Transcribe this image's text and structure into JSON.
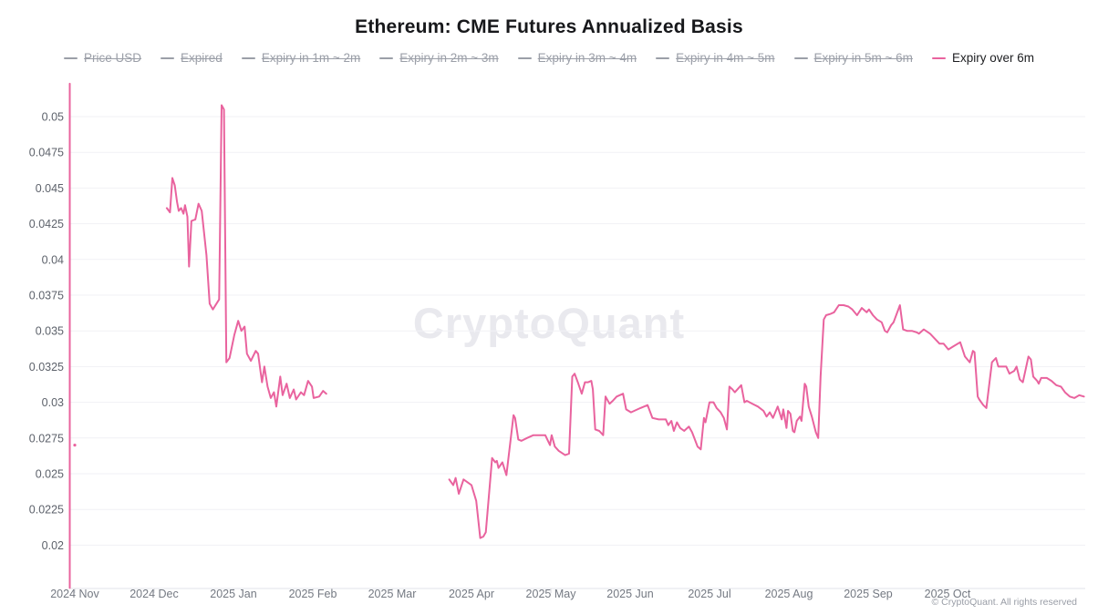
{
  "title": "Ethereum: CME Futures Annualized Basis",
  "watermark": "CryptoQuant",
  "copyright": "© CryptoQuant. All rights reserved",
  "colors": {
    "accent_pink": "#e9639e",
    "legend_disabled_gray": "#9b9fa8",
    "grid_line": "#f1f1f5",
    "axis_line": "#e2e3e8",
    "axis_text": "#747982",
    "y_axis_text": "#5d626b"
  },
  "legend": {
    "items": [
      {
        "label": "Price USD",
        "active": false
      },
      {
        "label": "Expired",
        "active": false
      },
      {
        "label": "Expiry in 1m ~ 2m",
        "active": false
      },
      {
        "label": "Expiry in 2m ~ 3m",
        "active": false
      },
      {
        "label": "Expiry in 3m ~ 4m",
        "active": false
      },
      {
        "label": "Expiry in 4m ~ 5m",
        "active": false
      },
      {
        "label": "Expiry in 5m ~ 6m",
        "active": false
      },
      {
        "label": "Expiry over 6m",
        "active": true
      }
    ]
  },
  "chart_data": {
    "type": "line",
    "title": "Ethereum: CME Futures Annualized Basis",
    "xlabel": "",
    "ylabel": "",
    "grid": true,
    "legend_position": "top",
    "x_axis": {
      "unit": "months since 2024-11-01 (decimal)",
      "labels": [
        "2024 Nov",
        "2024 Dec",
        "2025 Jan",
        "2025 Feb",
        "2025 Mar",
        "2025 Apr",
        "2025 May",
        "2025 Jun",
        "2025 Jul",
        "2025 Aug",
        "2025 Sep",
        "2025 Oct"
      ]
    },
    "y_axis": {
      "tick_values": [
        0.05,
        0.0475,
        0.045,
        0.0425,
        0.04,
        0.0375,
        0.035,
        0.0325,
        0.03,
        0.0275,
        0.025,
        0.0225,
        0.02
      ],
      "tick_labels": [
        "0.05",
        "0.0475",
        "0.045",
        "0.0425",
        "0.04",
        "0.0375",
        "0.035",
        "0.0325",
        "0.03",
        "0.0275",
        "0.025",
        "0.0225",
        "0.02"
      ],
      "range": [
        0.0165,
        0.0525
      ]
    },
    "series": [
      {
        "name": "Expiry over 6m",
        "color": "#e9639e",
        "points": [
          [
            0.0,
            0.027
          ]
        ],
        "segments": [
          [
            [
              -0.063,
              0.0523
            ],
            [
              -0.063,
              0.017
            ]
          ],
          [
            [
              1.16,
              0.0436
            ],
            [
              1.2,
              0.0433
            ],
            [
              1.23,
              0.0457
            ],
            [
              1.26,
              0.0452
            ],
            [
              1.29,
              0.044
            ],
            [
              1.31,
              0.0434
            ],
            [
              1.34,
              0.0436
            ],
            [
              1.37,
              0.0432
            ],
            [
              1.39,
              0.0438
            ],
            [
              1.42,
              0.043
            ],
            [
              1.44,
              0.0395
            ],
            [
              1.47,
              0.0427
            ],
            [
              1.52,
              0.0428
            ],
            [
              1.56,
              0.0439
            ],
            [
              1.6,
              0.0434
            ],
            [
              1.66,
              0.0403
            ],
            [
              1.7,
              0.0369
            ],
            [
              1.74,
              0.0365
            ],
            [
              1.82,
              0.0372
            ],
            [
              1.85,
              0.0508
            ],
            [
              1.88,
              0.0505
            ],
            [
              1.91,
              0.0328
            ],
            [
              1.95,
              0.0331
            ],
            [
              2.01,
              0.0347
            ],
            [
              2.06,
              0.0357
            ],
            [
              2.1,
              0.035
            ],
            [
              2.14,
              0.0353
            ],
            [
              2.17,
              0.0334
            ],
            [
              2.22,
              0.0329
            ],
            [
              2.28,
              0.0336
            ],
            [
              2.31,
              0.0334
            ],
            [
              2.36,
              0.0314
            ],
            [
              2.39,
              0.0325
            ],
            [
              2.43,
              0.0311
            ],
            [
              2.47,
              0.0303
            ],
            [
              2.51,
              0.0307
            ],
            [
              2.54,
              0.0297
            ],
            [
              2.59,
              0.0318
            ],
            [
              2.62,
              0.0305
            ],
            [
              2.67,
              0.0313
            ],
            [
              2.71,
              0.0303
            ],
            [
              2.76,
              0.0309
            ],
            [
              2.79,
              0.0302
            ],
            [
              2.85,
              0.0307
            ],
            [
              2.89,
              0.0305
            ],
            [
              2.94,
              0.0315
            ],
            [
              2.99,
              0.0311
            ],
            [
              3.01,
              0.0303
            ],
            [
              3.08,
              0.0304
            ],
            [
              3.13,
              0.0308
            ],
            [
              3.17,
              0.0306
            ]
          ],
          [
            [
              4.72,
              0.0246
            ],
            [
              4.77,
              0.0242
            ],
            [
              4.8,
              0.0247
            ],
            [
              4.84,
              0.0236
            ],
            [
              4.9,
              0.0246
            ],
            [
              4.95,
              0.0244
            ],
            [
              5.0,
              0.0242
            ],
            [
              5.06,
              0.0231
            ],
            [
              5.11,
              0.0205
            ],
            [
              5.15,
              0.0206
            ],
            [
              5.18,
              0.0209
            ],
            [
              5.26,
              0.0261
            ],
            [
              5.3,
              0.0258
            ],
            [
              5.32,
              0.0259
            ],
            [
              5.34,
              0.0254
            ],
            [
              5.39,
              0.0258
            ],
            [
              5.44,
              0.0249
            ],
            [
              5.53,
              0.0291
            ],
            [
              5.55,
              0.0289
            ],
            [
              5.59,
              0.0274
            ],
            [
              5.63,
              0.0273
            ],
            [
              5.7,
              0.0275
            ],
            [
              5.78,
              0.0277
            ],
            [
              5.86,
              0.0277
            ],
            [
              5.93,
              0.0277
            ],
            [
              5.99,
              0.027
            ],
            [
              6.01,
              0.0277
            ],
            [
              6.05,
              0.0269
            ],
            [
              6.1,
              0.0266
            ],
            [
              6.18,
              0.0263
            ],
            [
              6.23,
              0.0264
            ],
            [
              6.27,
              0.0318
            ],
            [
              6.3,
              0.032
            ],
            [
              6.34,
              0.0314
            ],
            [
              6.39,
              0.0306
            ],
            [
              6.43,
              0.0314
            ],
            [
              6.47,
              0.0314
            ],
            [
              6.51,
              0.0315
            ],
            [
              6.53,
              0.0309
            ],
            [
              6.56,
              0.0281
            ],
            [
              6.61,
              0.028
            ],
            [
              6.66,
              0.0277
            ],
            [
              6.69,
              0.0304
            ],
            [
              6.74,
              0.0299
            ],
            [
              6.78,
              0.0301
            ],
            [
              6.83,
              0.0304
            ],
            [
              6.91,
              0.0306
            ],
            [
              6.95,
              0.0295
            ],
            [
              7.01,
              0.0293
            ],
            [
              7.13,
              0.0296
            ],
            [
              7.22,
              0.0298
            ],
            [
              7.28,
              0.0289
            ],
            [
              7.36,
              0.0288
            ],
            [
              7.45,
              0.0288
            ],
            [
              7.48,
              0.0284
            ],
            [
              7.52,
              0.0287
            ],
            [
              7.55,
              0.028
            ],
            [
              7.59,
              0.0286
            ],
            [
              7.63,
              0.0282
            ],
            [
              7.68,
              0.028
            ],
            [
              7.74,
              0.0283
            ],
            [
              7.78,
              0.0279
            ],
            [
              7.85,
              0.0269
            ],
            [
              7.89,
              0.0267
            ],
            [
              7.93,
              0.0289
            ],
            [
              7.95,
              0.0286
            ],
            [
              8.0,
              0.03
            ],
            [
              8.05,
              0.03
            ],
            [
              8.09,
              0.0296
            ],
            [
              8.14,
              0.0293
            ],
            [
              8.18,
              0.0289
            ],
            [
              8.22,
              0.0281
            ],
            [
              8.25,
              0.0311
            ],
            [
              8.29,
              0.0309
            ],
            [
              8.32,
              0.0307
            ],
            [
              8.4,
              0.0312
            ],
            [
              8.44,
              0.03
            ],
            [
              8.47,
              0.0301
            ],
            [
              8.54,
              0.0299
            ],
            [
              8.61,
              0.0297
            ],
            [
              8.68,
              0.0294
            ],
            [
              8.72,
              0.029
            ],
            [
              8.76,
              0.0293
            ],
            [
              8.8,
              0.0289
            ],
            [
              8.86,
              0.0297
            ],
            [
              8.91,
              0.0288
            ],
            [
              8.93,
              0.0295
            ],
            [
              8.97,
              0.0282
            ],
            [
              8.99,
              0.0294
            ],
            [
              9.02,
              0.0292
            ],
            [
              9.05,
              0.028
            ],
            [
              9.07,
              0.0279
            ],
            [
              9.1,
              0.0287
            ],
            [
              9.14,
              0.029
            ],
            [
              9.16,
              0.0287
            ],
            [
              9.2,
              0.0313
            ],
            [
              9.22,
              0.0311
            ],
            [
              9.25,
              0.0297
            ],
            [
              9.29,
              0.029
            ],
            [
              9.34,
              0.0279
            ],
            [
              9.37,
              0.0275
            ],
            [
              9.4,
              0.0318
            ],
            [
              9.44,
              0.0358
            ],
            [
              9.47,
              0.0361
            ],
            [
              9.53,
              0.0362
            ],
            [
              9.57,
              0.0363
            ],
            [
              9.63,
              0.0368
            ],
            [
              9.69,
              0.0368
            ],
            [
              9.75,
              0.0367
            ],
            [
              9.8,
              0.0365
            ],
            [
              9.86,
              0.0361
            ],
            [
              9.92,
              0.0366
            ],
            [
              9.98,
              0.0363
            ],
            [
              10.01,
              0.0365
            ],
            [
              10.06,
              0.0361
            ],
            [
              10.11,
              0.0358
            ],
            [
              10.17,
              0.0356
            ],
            [
              10.21,
              0.035
            ],
            [
              10.24,
              0.0349
            ],
            [
              10.29,
              0.0354
            ],
            [
              10.32,
              0.0356
            ],
            [
              10.4,
              0.0368
            ],
            [
              10.44,
              0.0351
            ],
            [
              10.49,
              0.035
            ],
            [
              10.55,
              0.035
            ],
            [
              10.61,
              0.0349
            ],
            [
              10.64,
              0.0348
            ],
            [
              10.7,
              0.0351
            ],
            [
              10.78,
              0.0348
            ],
            [
              10.9,
              0.0341
            ],
            [
              10.95,
              0.0341
            ],
            [
              11.01,
              0.0337
            ],
            [
              11.07,
              0.0339
            ],
            [
              11.16,
              0.0342
            ],
            [
              11.22,
              0.0332
            ],
            [
              11.28,
              0.0328
            ],
            [
              11.32,
              0.0336
            ],
            [
              11.34,
              0.0335
            ],
            [
              11.38,
              0.0304
            ],
            [
              11.4,
              0.0302
            ],
            [
              11.45,
              0.0298
            ],
            [
              11.49,
              0.0296
            ],
            [
              11.56,
              0.0328
            ],
            [
              11.61,
              0.0331
            ],
            [
              11.64,
              0.0325
            ],
            [
              11.68,
              0.0325
            ],
            [
              11.74,
              0.0325
            ],
            [
              11.78,
              0.032
            ],
            [
              11.84,
              0.0322
            ],
            [
              11.87,
              0.0325
            ],
            [
              11.91,
              0.0316
            ],
            [
              11.95,
              0.0314
            ],
            [
              12.02,
              0.0332
            ],
            [
              12.05,
              0.033
            ],
            [
              12.08,
              0.0318
            ],
            [
              12.13,
              0.0315
            ],
            [
              12.15,
              0.0313
            ],
            [
              12.18,
              0.0317
            ],
            [
              12.25,
              0.0317
            ],
            [
              12.31,
              0.0315
            ],
            [
              12.37,
              0.0312
            ],
            [
              12.43,
              0.0311
            ],
            [
              12.48,
              0.0307
            ],
            [
              12.54,
              0.0304
            ],
            [
              12.6,
              0.0303
            ],
            [
              12.66,
              0.0305
            ],
            [
              12.72,
              0.0304
            ]
          ]
        ]
      }
    ]
  }
}
